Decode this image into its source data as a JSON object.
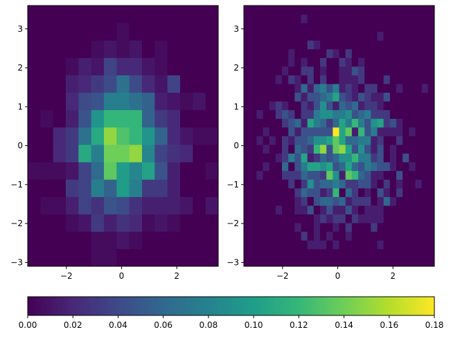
{
  "chart_data": [
    {
      "type": "heatmap",
      "title": "",
      "xlabel": "",
      "ylabel": "",
      "xlim": [
        -3.4,
        3.5
      ],
      "ylim": [
        -3.1,
        3.6
      ],
      "x_ticks": [
        -2,
        0,
        2
      ],
      "y_ticks": [
        -3,
        -2,
        -1,
        0,
        1,
        2,
        3
      ],
      "x_tick_labels": [
        "−2",
        "0",
        "2"
      ],
      "y_tick_labels": [
        "−3",
        "−2",
        "−1",
        "0",
        "1",
        "2",
        "3"
      ],
      "bins": "15 x 15",
      "peak_density": 0.15,
      "peak_location": [
        0.5,
        0
      ]
    },
    {
      "type": "heatmap",
      "title": "",
      "xlabel": "",
      "ylabel": "",
      "xlim": [
        -3.4,
        3.5
      ],
      "ylim": [
        -3.1,
        3.6
      ],
      "x_ticks": [
        -2,
        0,
        2
      ],
      "y_ticks": [
        -3,
        -2,
        -1,
        0,
        1,
        2,
        3
      ],
      "x_tick_labels": [
        "−2",
        "0",
        "2"
      ],
      "y_tick_labels": [
        "−3",
        "−2",
        "−1",
        "0",
        "1",
        "2",
        "3"
      ],
      "bins": "30 x 30",
      "peak_density": 0.18,
      "peak_location": [
        0.3,
        0.5
      ]
    }
  ],
  "colorbar": {
    "colormap": "viridis",
    "orientation": "horizontal",
    "range": [
      0.0,
      0.18
    ],
    "ticks": [
      0.0,
      0.02,
      0.04,
      0.06,
      0.08,
      0.1,
      0.12,
      0.14,
      0.16,
      0.18
    ],
    "tick_labels": [
      "0.00",
      "0.02",
      "0.04",
      "0.06",
      "0.08",
      "0.10",
      "0.12",
      "0.14",
      "0.16",
      "0.18"
    ],
    "colors": [
      "#440154",
      "#482878",
      "#3e4989",
      "#31688e",
      "#26828e",
      "#1f9e89",
      "#35b779",
      "#6ece58",
      "#b5de2b",
      "#fde725"
    ]
  }
}
